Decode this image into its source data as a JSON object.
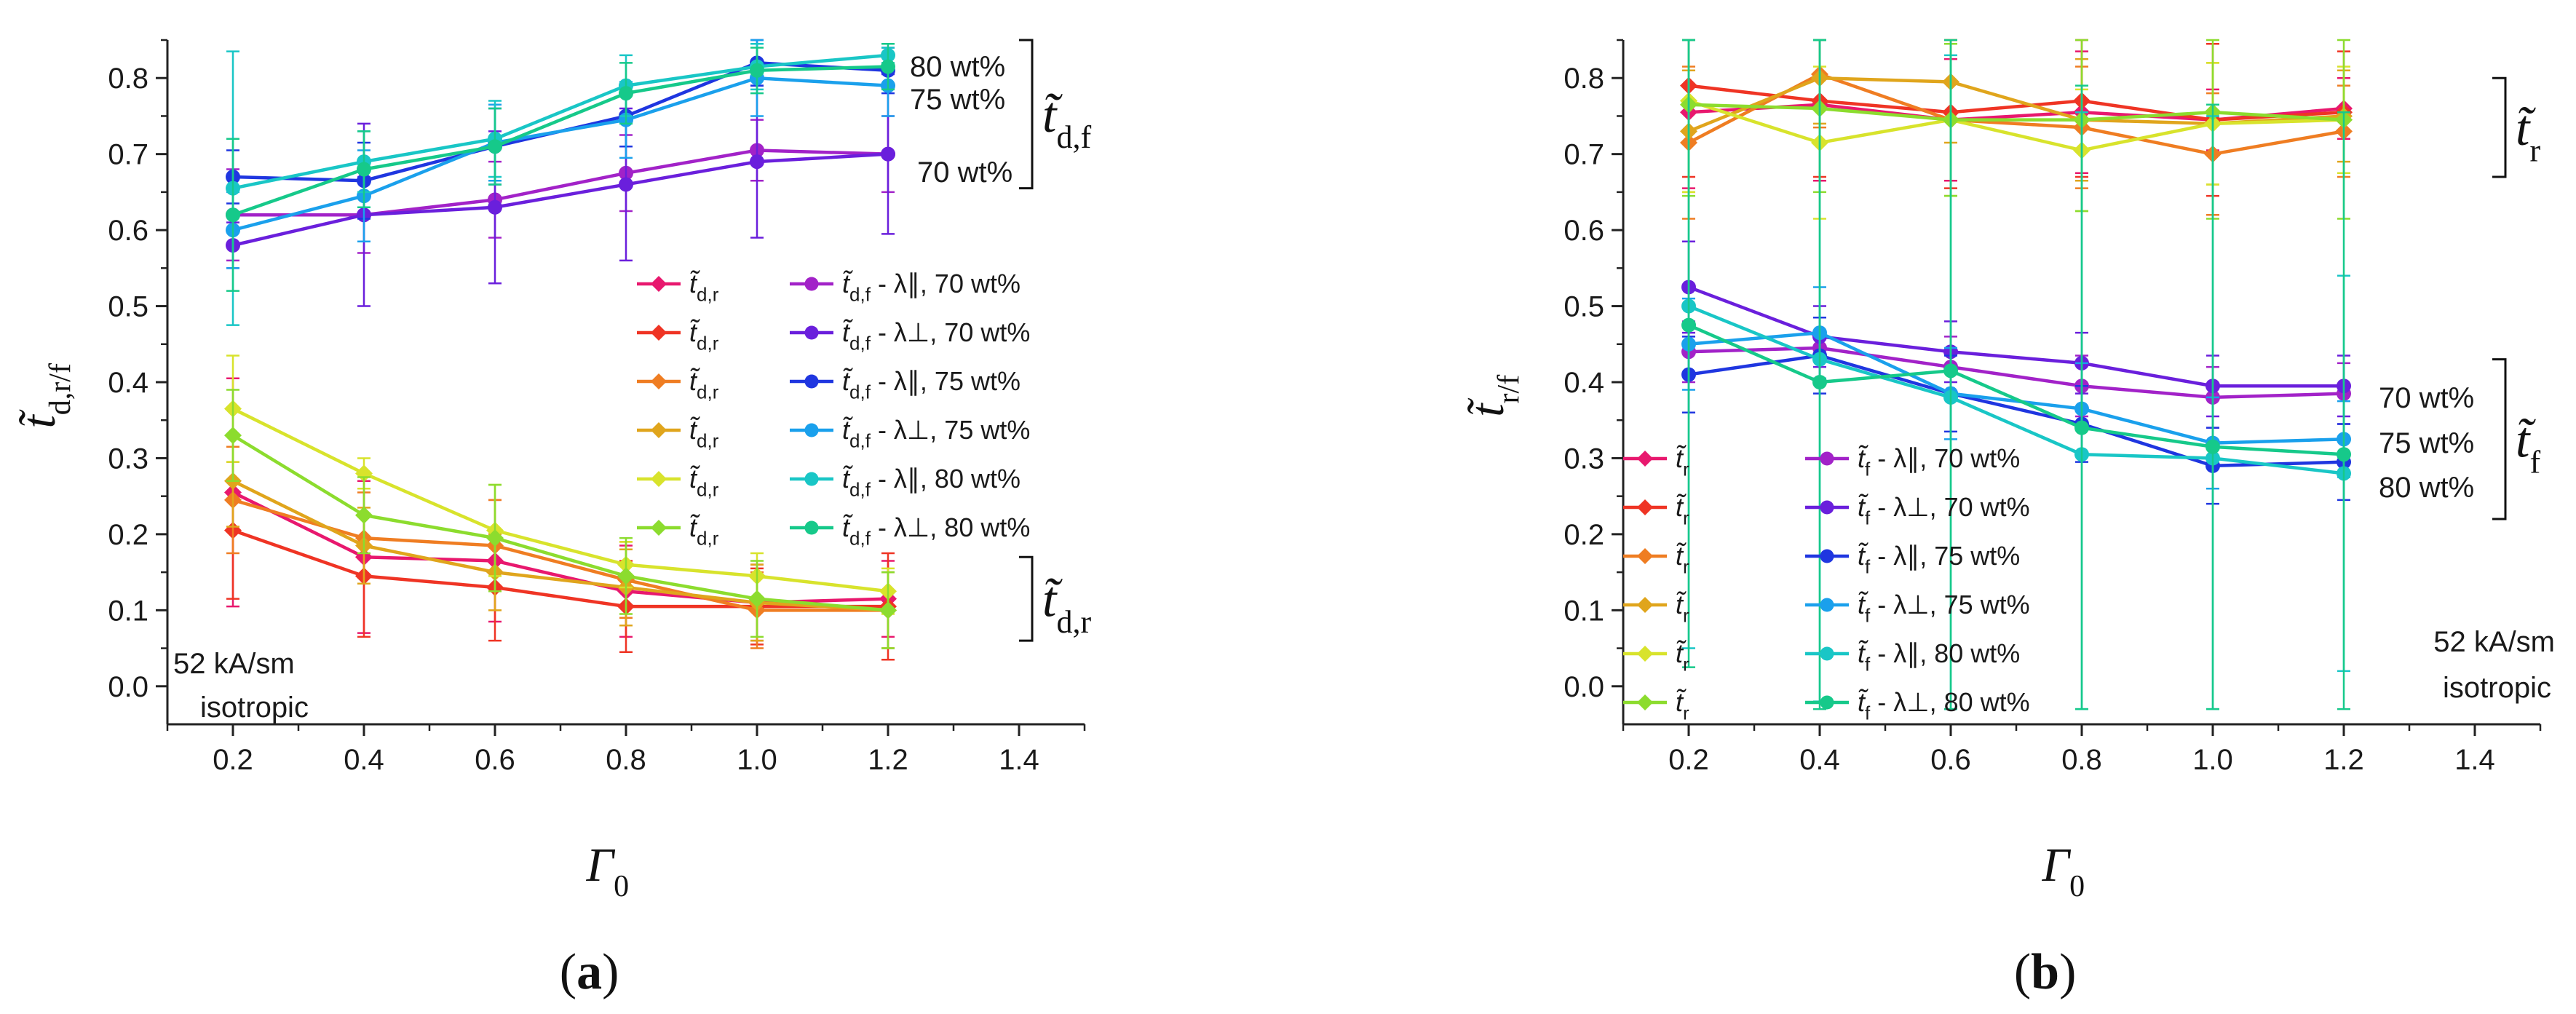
{
  "chart_data": [
    {
      "type": "line",
      "panel_label": "(a)",
      "ylabel_main": "t̃",
      "ylabel_sub": "d,r/f",
      "xlabel_main": "Γ",
      "xlabel_sub": "0",
      "xlim": [
        0.1,
        1.5
      ],
      "ylim": [
        -0.05,
        0.85
      ],
      "xticks": [
        "0.2",
        "0.4",
        "0.6",
        "0.8",
        "1.0",
        "1.2",
        "1.4"
      ],
      "yticks": [
        "0.0",
        "0.1",
        "0.2",
        "0.3",
        "0.4",
        "0.5",
        "0.6",
        "0.7",
        "0.8"
      ],
      "x": [
        0.2,
        0.4,
        0.6,
        0.8,
        1.0,
        1.2
      ],
      "annotations": {
        "field": "52 kA/sm",
        "state": "isotropic",
        "conc_80": "80 wt%",
        "conc_75": "75 wt%",
        "conc_70": "70 wt%",
        "group_top": "t̃",
        "group_top_sub": "d,f",
        "group_bottom": "t̃",
        "group_bottom_sub": "d,r"
      },
      "series": [
        {
          "name": "t̃ d,r",
          "legend_main": "t̃",
          "legend_sub": "d,r",
          "legend_tail": "",
          "color": "#e8186e",
          "marker": "diamond",
          "values": [
            0.255,
            0.17,
            0.165,
            0.125,
            0.11,
            0.115
          ],
          "err": [
            0.15,
            0.1,
            0.08,
            0.06,
            0.05,
            0.05
          ]
        },
        {
          "name": "t̃ d,r",
          "legend_main": "t̃",
          "legend_sub": "d,r",
          "legend_tail": "",
          "color": "#ef3424",
          "marker": "diamond",
          "values": [
            0.205,
            0.145,
            0.13,
            0.105,
            0.105,
            0.105
          ],
          "err": [
            0.09,
            0.08,
            0.07,
            0.06,
            0.05,
            0.07
          ]
        },
        {
          "name": "t̃ d,r",
          "legend_main": "t̃",
          "legend_sub": "d,r",
          "legend_tail": "",
          "color": "#ef7d22",
          "marker": "diamond",
          "values": [
            0.245,
            0.195,
            0.185,
            0.14,
            0.1,
            0.1
          ],
          "err": [
            0.07,
            0.06,
            0.06,
            0.05,
            0.05,
            0.05
          ]
        },
        {
          "name": "t̃ d,r",
          "legend_main": "t̃",
          "legend_sub": "d,r",
          "legend_tail": "",
          "color": "#e0a51c",
          "marker": "diamond",
          "values": [
            0.27,
            0.185,
            0.15,
            0.13,
            0.11,
            0.1
          ],
          "err": [
            0.06,
            0.05,
            0.05,
            0.05,
            0.05,
            0.05
          ]
        },
        {
          "name": "t̃ d,r",
          "legend_main": "t̃",
          "legend_sub": "d,r",
          "legend_tail": "",
          "color": "#d8e32c",
          "marker": "diamond",
          "values": [
            0.365,
            0.28,
            0.205,
            0.16,
            0.145,
            0.125
          ],
          "err": [
            0.07,
            0.02,
            0.06,
            0.03,
            0.03,
            0.03
          ]
        },
        {
          "name": "t̃ d,r",
          "legend_main": "t̃",
          "legend_sub": "d,r",
          "legend_tail": "",
          "color": "#8cdc2e",
          "marker": "diamond",
          "values": [
            0.33,
            0.225,
            0.195,
            0.145,
            0.115,
            0.1
          ],
          "err": [
            0.06,
            0.05,
            0.07,
            0.05,
            0.05,
            0.05
          ]
        },
        {
          "name": "t̃ d,f - λ∥, 70 wt%",
          "legend_main": "t̃",
          "legend_sub": "d,f",
          "legend_tail": " - λ∥, 70 wt%",
          "color": "#a222c8",
          "marker": "circle",
          "values": [
            0.62,
            0.62,
            0.64,
            0.675,
            0.705,
            0.7
          ],
          "err": [
            0.06,
            0.05,
            0.05,
            0.05,
            0.04,
            0.05
          ]
        },
        {
          "name": "t̃ d,f - λ⊥, 70 wt%",
          "legend_main": "t̃",
          "legend_sub": "d,f",
          "legend_tail": " - λ⊥, 70 wt%",
          "color": "#6a1fdc",
          "marker": "circle",
          "values": [
            0.58,
            0.62,
            0.63,
            0.66,
            0.69,
            0.7
          ],
          "err": [
            0.03,
            0.12,
            0.1,
            0.1,
            0.1,
            0.105
          ]
        },
        {
          "name": "t̃ d,f - λ∥, 75 wt%",
          "legend_main": "t̃",
          "legend_sub": "d,f",
          "legend_tail": " - λ∥, 75 wt%",
          "color": "#1f36e0",
          "marker": "circle",
          "values": [
            0.67,
            0.665,
            0.71,
            0.75,
            0.82,
            0.81
          ],
          "err": [
            0.035,
            0.05,
            0.05,
            0.04,
            0.03,
            0.03
          ]
        },
        {
          "name": "t̃ d,f - λ⊥, 75 wt%",
          "legend_main": "t̃",
          "legend_sub": "d,f",
          "legend_tail": " - λ⊥, 75 wt%",
          "color": "#1aa0ec",
          "marker": "circle",
          "values": [
            0.6,
            0.645,
            0.715,
            0.745,
            0.8,
            0.79
          ],
          "err": [
            0.05,
            0.06,
            0.05,
            0.05,
            0.05,
            0.04
          ]
        },
        {
          "name": "t̃ d,f - λ∥, 80 wt%",
          "legend_main": "t̃",
          "legend_sub": "d,f",
          "legend_tail": " - λ∥, 80 wt%",
          "color": "#19c6c6",
          "marker": "circle",
          "values": [
            0.655,
            0.69,
            0.72,
            0.79,
            0.815,
            0.83
          ],
          "err": [
            0.18,
            0.04,
            0.05,
            0.04,
            0.03,
            0.01
          ]
        },
        {
          "name": "t̃ d,f - λ⊥, 80 wt%",
          "legend_main": "t̃",
          "legend_sub": "d,f",
          "legend_tail": " - λ⊥, 80 wt%",
          "color": "#16c98a",
          "marker": "circle",
          "values": [
            0.62,
            0.68,
            0.71,
            0.78,
            0.81,
            0.815
          ],
          "err": [
            0.1,
            0.05,
            0.05,
            0.04,
            0.03,
            0.03
          ]
        }
      ]
    },
    {
      "type": "line",
      "panel_label": "(b)",
      "ylabel_main": "t̃",
      "ylabel_sub": "r/f",
      "xlabel_main": "Γ",
      "xlabel_sub": "0",
      "xlim": [
        0.1,
        1.5
      ],
      "ylim": [
        -0.05,
        0.85
      ],
      "xticks": [
        "0.2",
        "0.4",
        "0.6",
        "0.8",
        "1.0",
        "1.2",
        "1.4"
      ],
      "yticks": [
        "0.0",
        "0.1",
        "0.2",
        "0.3",
        "0.4",
        "0.5",
        "0.6",
        "0.7",
        "0.8"
      ],
      "x": [
        0.2,
        0.4,
        0.6,
        0.8,
        1.0,
        1.2
      ],
      "annotations": {
        "field": "52 kA/sm",
        "state": "isotropic",
        "conc_70": "70 wt%",
        "conc_75": "75 wt%",
        "conc_80": "80 wt%",
        "group_top": "t̃",
        "group_top_sub": "r",
        "group_bottom": "t̃",
        "group_bottom_sub": "f"
      },
      "series": [
        {
          "name": "t̃ r",
          "legend_main": "t̃",
          "legend_sub": "r",
          "legend_tail": "",
          "color": "#e8186e",
          "marker": "diamond",
          "values": [
            0.755,
            0.765,
            0.745,
            0.755,
            0.745,
            0.76
          ],
          "err": [
            0.1,
            0.1,
            0.08,
            0.08,
            0.04,
            0.04
          ]
        },
        {
          "name": "t̃ r",
          "legend_main": "t̃",
          "legend_sub": "r",
          "legend_tail": "",
          "color": "#ef3424",
          "marker": "diamond",
          "values": [
            0.79,
            0.77,
            0.755,
            0.77,
            0.745,
            0.755
          ],
          "err": [
            0.12,
            0.1,
            0.1,
            0.1,
            0.1,
            0.08
          ]
        },
        {
          "name": "t̃ r",
          "legend_main": "t̃",
          "legend_sub": "r",
          "legend_tail": "",
          "color": "#ef7d22",
          "marker": "diamond",
          "values": [
            0.715,
            0.805,
            0.745,
            0.735,
            0.7,
            0.73
          ],
          "err": [
            0.1,
            0.07,
            0.1,
            0.08,
            0.08,
            0.06
          ]
        },
        {
          "name": "t̃ r",
          "legend_main": "t̃",
          "legend_sub": "r",
          "legend_tail": "",
          "color": "#e0a51c",
          "marker": "diamond",
          "values": [
            0.73,
            0.8,
            0.795,
            0.745,
            0.74,
            0.75
          ],
          "err": [
            0.08,
            0.06,
            0.08,
            0.08,
            0.08,
            0.06
          ]
        },
        {
          "name": "t̃ r",
          "legend_main": "t̃",
          "legend_sub": "r",
          "legend_tail": "",
          "color": "#d8e32c",
          "marker": "diamond",
          "values": [
            0.77,
            0.715,
            0.745,
            0.705,
            0.74,
            0.745
          ],
          "err": [
            0.12,
            0.1,
            0.1,
            0.08,
            0.08,
            0.07
          ]
        },
        {
          "name": "t̃ r",
          "legend_main": "t̃",
          "legend_sub": "r",
          "legend_tail": "",
          "color": "#8cdc2e",
          "marker": "diamond",
          "values": [
            0.765,
            0.76,
            0.745,
            0.745,
            0.755,
            0.745
          ],
          "err": [
            0.12,
            0.11,
            0.1,
            0.12,
            0.14,
            0.13
          ]
        },
        {
          "name": "t̃ f - λ∥, 70 wt%",
          "legend_main": "t̃",
          "legend_sub": "f",
          "legend_tail": " - λ∥, 70 wt%",
          "color": "#a222c8",
          "marker": "circle",
          "values": [
            0.44,
            0.445,
            0.42,
            0.395,
            0.38,
            0.385
          ],
          "err": [
            0.04,
            0.04,
            0.04,
            0.04,
            0.04,
            0.04
          ]
        },
        {
          "name": "t̃ f - λ⊥, 70 wt%",
          "legend_main": "t̃",
          "legend_sub": "f",
          "legend_tail": " - λ⊥, 70 wt%",
          "color": "#6a1fdc",
          "marker": "circle",
          "values": [
            0.525,
            0.46,
            0.44,
            0.425,
            0.395,
            0.395
          ],
          "err": [
            0.06,
            0.04,
            0.04,
            0.04,
            0.04,
            0.04
          ]
        },
        {
          "name": "t̃ f - λ∥, 75 wt%",
          "legend_main": "t̃",
          "legend_sub": "f",
          "legend_tail": " - λ∥, 75 wt%",
          "color": "#1f36e0",
          "marker": "circle",
          "values": [
            0.41,
            0.435,
            0.385,
            0.345,
            0.29,
            0.295
          ],
          "err": [
            0.05,
            0.05,
            0.05,
            0.05,
            0.05,
            0.05
          ]
        },
        {
          "name": "t̃ f - λ⊥, 75 wt%",
          "legend_main": "t̃",
          "legend_sub": "f",
          "legend_tail": " - λ⊥, 75 wt%",
          "color": "#1aa0ec",
          "marker": "circle",
          "values": [
            0.45,
            0.465,
            0.385,
            0.365,
            0.32,
            0.325
          ],
          "err": [
            0.06,
            0.06,
            0.06,
            0.06,
            0.06,
            0.05
          ]
        },
        {
          "name": "t̃ f - λ∥, 80 wt%",
          "legend_main": "t̃",
          "legend_sub": "f",
          "legend_tail": " - λ∥, 80 wt%",
          "color": "#19c6c6",
          "marker": "circle",
          "values": [
            0.5,
            0.43,
            0.38,
            0.305,
            0.3,
            0.28
          ],
          "err": [
            0.45,
            0.45,
            0.45,
            0.45,
            0.45,
            0.26
          ]
        },
        {
          "name": "t̃ f - λ⊥, 80 wt%",
          "legend_main": "t̃",
          "legend_sub": "f",
          "legend_tail": " - λ⊥, 80 wt%",
          "color": "#16c98a",
          "marker": "circle",
          "values": [
            0.475,
            0.4,
            0.415,
            0.34,
            0.315,
            0.305
          ],
          "err": [
            0.45,
            0.45,
            0.45,
            0.45,
            0.45,
            0.45
          ]
        }
      ]
    }
  ]
}
